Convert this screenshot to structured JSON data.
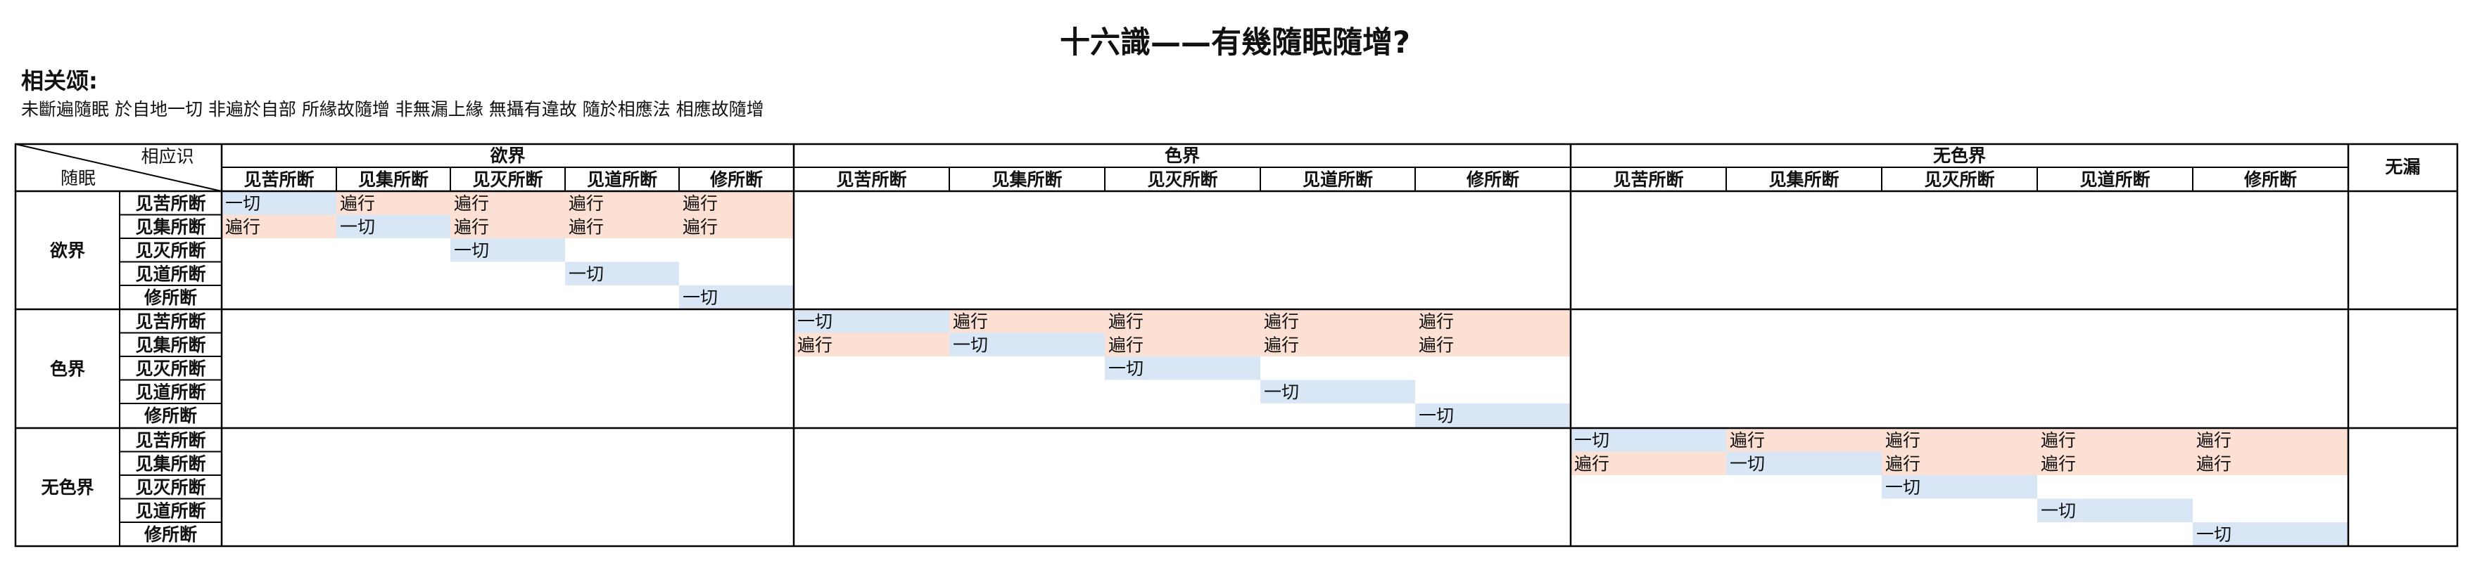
{
  "title": "十六識——有幾隨眠隨增?",
  "verse": {
    "label": "相关颂:",
    "text": "未斷遍隨眠 於自地一切 非遍於自部 所緣故隨增 非無漏上緣 無攝有違故 隨於相應法 相應故隨增"
  },
  "corner": {
    "top": "相应识",
    "bottom": "随眠"
  },
  "realms": [
    "欲界",
    "色界",
    "无色界"
  ],
  "categories": [
    "见苦所断",
    "见集所断",
    "见灭所断",
    "见道所断",
    "修所断"
  ],
  "wulou": "无漏",
  "values": {
    "all": "一切",
    "pervasive": "遍行"
  },
  "colors": {
    "all": "#d9e6f5",
    "pervasive": "#fbe0d3",
    "line": "#000000"
  },
  "matrix": [
    [
      "一切",
      "遍行",
      "遍行",
      "遍行",
      "遍行"
    ],
    [
      "遍行",
      "一切",
      "遍行",
      "遍行",
      "遍行"
    ],
    [
      "",
      "",
      "一切",
      "",
      ""
    ],
    [
      "",
      "",
      "",
      "一切",
      ""
    ],
    [
      "",
      "",
      "",
      "",
      "一切"
    ]
  ]
}
